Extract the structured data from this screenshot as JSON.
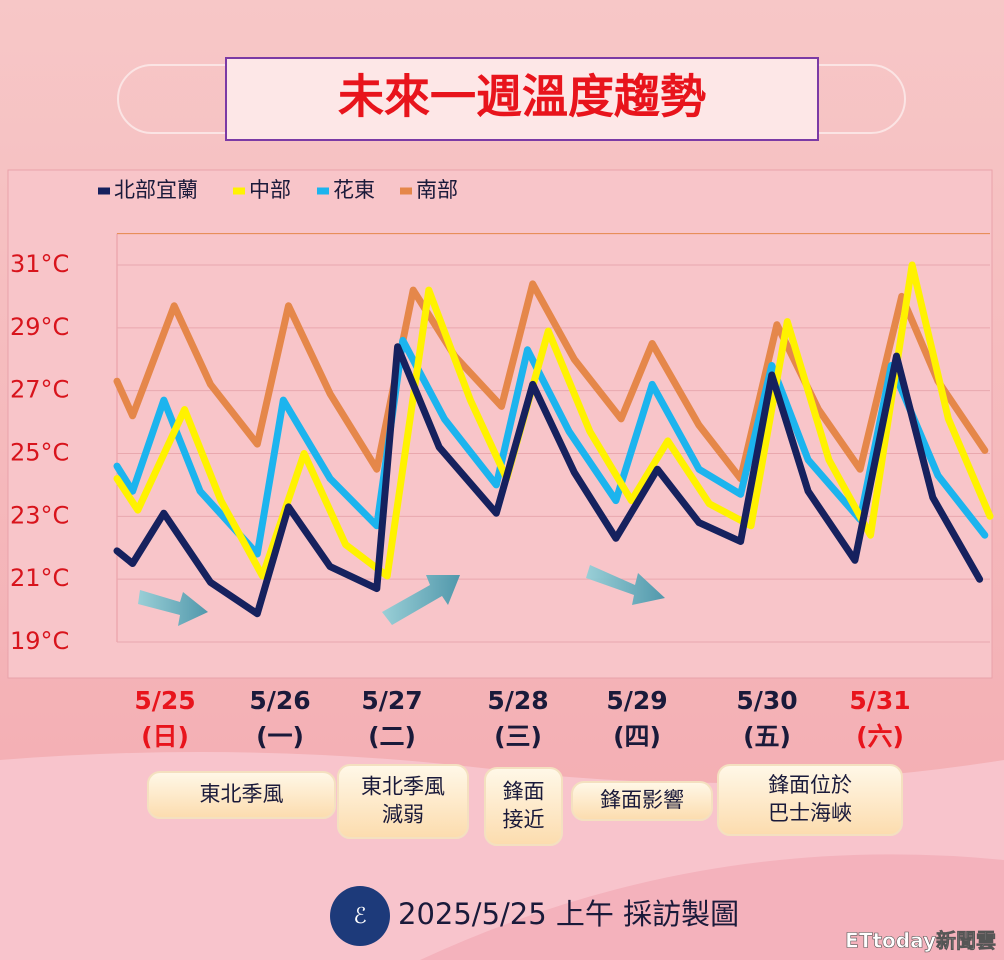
{
  "chart_data": {
    "type": "line",
    "title": "未來一週溫度趨勢",
    "xlim": [
      0,
      168
    ],
    "ylim": [
      19,
      32
    ],
    "yticks": [
      {
        "value": 19,
        "label": "19°C"
      },
      {
        "value": 21,
        "label": "21°C"
      },
      {
        "value": 23,
        "label": "23°C"
      },
      {
        "value": 25,
        "label": "25°C"
      },
      {
        "value": 27,
        "label": "27°C"
      },
      {
        "value": 29,
        "label": "29°C"
      },
      {
        "value": 31,
        "label": "31°C"
      }
    ],
    "grid": true,
    "series": [
      {
        "name": "北部宜蘭",
        "color": "#16215e",
        "x": [
          0,
          3,
          9,
          18,
          27,
          33,
          41,
          50,
          54,
          62,
          73,
          80,
          88,
          96,
          104,
          112,
          120,
          126,
          133,
          142,
          150,
          157,
          166
        ],
        "values": [
          21.9,
          21.5,
          23.1,
          20.9,
          19.9,
          23.3,
          21.4,
          20.7,
          28.4,
          25.2,
          23.1,
          27.2,
          24.4,
          22.3,
          24.5,
          22.8,
          22.2,
          27.5,
          23.8,
          21.6,
          28.1,
          23.6,
          21.0
        ]
      },
      {
        "name": "中部",
        "color": "#fff200",
        "x": [
          0,
          4,
          13,
          20,
          28,
          36,
          44,
          52,
          60,
          68,
          75,
          83,
          91,
          99,
          106,
          114,
          122,
          129,
          137,
          145,
          153,
          160,
          168
        ],
        "values": [
          24.2,
          23.2,
          26.4,
          23.5,
          21.1,
          25.0,
          22.1,
          21.1,
          30.2,
          26.7,
          24.2,
          28.9,
          25.7,
          23.5,
          25.4,
          23.4,
          22.7,
          29.2,
          24.8,
          22.4,
          31.0,
          26.1,
          23.0
        ]
      },
      {
        "name": "花東",
        "color": "#1cb4ee",
        "x": [
          0,
          3,
          9,
          16,
          27,
          32,
          41,
          50,
          55,
          63,
          73,
          79,
          87,
          96,
          103,
          112,
          120,
          126,
          133,
          143,
          149,
          158,
          167
        ],
        "values": [
          24.6,
          23.8,
          26.7,
          23.8,
          21.8,
          26.7,
          24.2,
          22.7,
          28.6,
          26.1,
          24.0,
          28.3,
          25.7,
          23.5,
          27.2,
          24.5,
          23.7,
          27.8,
          24.8,
          22.9,
          27.8,
          24.3,
          22.4
        ]
      },
      {
        "name": "南部",
        "color": "#e5874a",
        "x": [
          0,
          3,
          11,
          18,
          27,
          33,
          41,
          50,
          57,
          65,
          74,
          80,
          88,
          97,
          103,
          112,
          120,
          127,
          135,
          143,
          151,
          158,
          167
        ],
        "values": [
          27.3,
          26.2,
          29.7,
          27.2,
          25.3,
          29.7,
          26.9,
          24.5,
          30.2,
          28.1,
          26.5,
          30.4,
          28.0,
          26.1,
          28.5,
          25.9,
          24.2,
          29.1,
          26.4,
          24.5,
          30.0,
          27.3,
          25.1
        ]
      }
    ],
    "date_labels": [
      {
        "date": "5/25",
        "day": "(日)",
        "color": "#e8141c"
      },
      {
        "date": "5/26",
        "day": "(一)",
        "color": "#1a1a3a"
      },
      {
        "date": "5/27",
        "day": "(二)",
        "color": "#1a1a3a"
      },
      {
        "date": "5/28",
        "day": "(三)",
        "color": "#1a1a3a"
      },
      {
        "date": "5/29",
        "day": "(四)",
        "color": "#1a1a3a"
      },
      {
        "date": "5/30",
        "day": "(五)",
        "color": "#1a1a3a"
      },
      {
        "date": "5/31",
        "day": "(六)",
        "color": "#e8141c"
      }
    ]
  },
  "notes": [
    [
      "東北季風"
    ],
    [
      "東北季風",
      "減弱"
    ],
    [
      "鋒面",
      "接近"
    ],
    [
      "鋒面影響"
    ],
    [
      "鋒面位於",
      "巴士海峽"
    ]
  ],
  "footer": "2025/5/25 上午 採訪製圖",
  "watermark": "ETtoday新聞雲"
}
